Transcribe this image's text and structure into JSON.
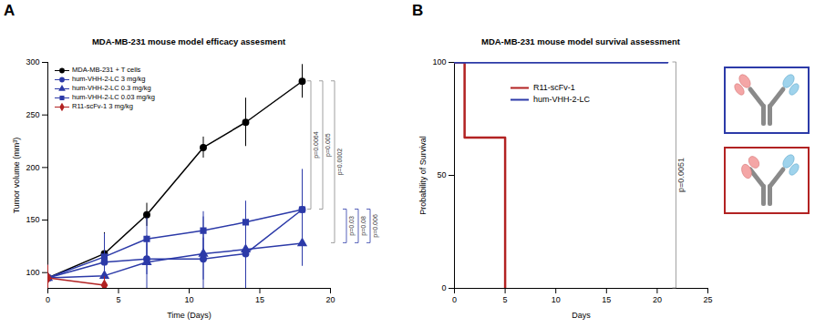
{
  "chart_data": [
    {
      "type": "line",
      "panel_label": "A",
      "title": "MDA-MB-231 mouse model efficacy assesment",
      "x_label": "Time (Days)",
      "y_label": "Tumor volume (mm³)",
      "xlim": [
        0,
        20
      ],
      "xticks": [
        0,
        5,
        10,
        15,
        20
      ],
      "ylim": [
        85,
        300
      ],
      "yticks": [
        100,
        150,
        200,
        250,
        300
      ],
      "legend": "top-left",
      "x": [
        0,
        4,
        7,
        11,
        14,
        18
      ],
      "series": [
        {
          "name": "MDA-MB-231 + T cells",
          "color": "#000000",
          "marker": "circle",
          "values": [
            95,
            118,
            155,
            219,
            243,
            282
          ],
          "errors": [
            12,
            20,
            11,
            10,
            23,
            16
          ]
        },
        {
          "name": "hum-VHH-2-LC 3 mg/kg",
          "color": "#2c3aa8",
          "marker": "circle",
          "values": [
            95,
            110,
            113,
            113,
            118,
            160
          ],
          "errors": [
            10,
            25,
            15,
            20,
            30,
            38
          ]
        },
        {
          "name": "hum-VHH-2-LC 0.3 mg/kg",
          "color": "#2c3aa8",
          "marker": "triangle",
          "values": [
            95,
            97,
            110,
            118,
            122,
            128
          ],
          "errors": [
            10,
            20,
            25,
            35,
            40,
            22
          ]
        },
        {
          "name": "hum-VHH-2-LC 0.03 mg/kg",
          "color": "#2c3aa8",
          "marker": "square",
          "values": [
            95,
            115,
            132,
            140,
            148,
            160
          ],
          "errors": [
            12,
            22,
            20,
            18,
            20,
            38
          ]
        },
        {
          "name": "R11-scFv-1 3 mg/kg",
          "color": "#b22222",
          "marker": "diamond",
          "values": [
            95,
            88,
            null,
            null,
            null,
            null
          ],
          "errors": [
            12,
            8,
            null,
            null,
            null,
            null
          ]
        }
      ],
      "annotations": [
        {
          "text": "p=0.0064",
          "between": [
            "MDA-MB-231 + T cells",
            "hum-VHH-2-LC 3 mg/kg"
          ]
        },
        {
          "text": "p=0.005",
          "between": [
            "MDA-MB-231 + T cells",
            "hum-VHH-2-LC 0.03 mg/kg"
          ]
        },
        {
          "text": "p=0.0002",
          "between": [
            "MDA-MB-231 + T cells",
            "hum-VHH-2-LC 0.3 mg/kg"
          ]
        },
        {
          "text": "p=0.03",
          "between": [
            "hum-VHH-2-LC 0.3 mg/kg",
            "hum-VHH-2-LC 0.03 mg/kg"
          ]
        },
        {
          "text": "p=0.08",
          "between": [
            "hum-VHH-2-LC 3 mg/kg",
            "hum-VHH-2-LC 0.3 mg/kg"
          ]
        },
        {
          "text": "p=0.006",
          "between": [
            "hum-VHH-2-LC 0.3 mg/kg",
            "hum-VHH-2-LC 3 mg/kg"
          ]
        }
      ]
    },
    {
      "type": "step",
      "panel_label": "B",
      "title": "MDA-MB-231 mouse model survival assessment",
      "x_label": "Days",
      "y_label": "Probability of Survival",
      "xlim": [
        0,
        25
      ],
      "xticks": [
        0,
        5,
        10,
        15,
        20,
        25
      ],
      "ylim": [
        0,
        100
      ],
      "yticks": [
        0,
        50,
        100
      ],
      "legend": "top",
      "series": [
        {
          "name": "R11-scFv-1",
          "color": "#b22222",
          "x": [
            0,
            1,
            5
          ],
          "values": [
            100,
            66.7,
            0
          ]
        },
        {
          "name": "hum-VHH-2-LC",
          "color": "#2c3aa8",
          "x": [
            0,
            21
          ],
          "values": [
            100,
            100
          ]
        }
      ],
      "annotations": [
        {
          "text": "p=0.0051",
          "between": [
            "R11-scFv-1",
            "hum-VHH-2-LC"
          ]
        }
      ]
    }
  ]
}
